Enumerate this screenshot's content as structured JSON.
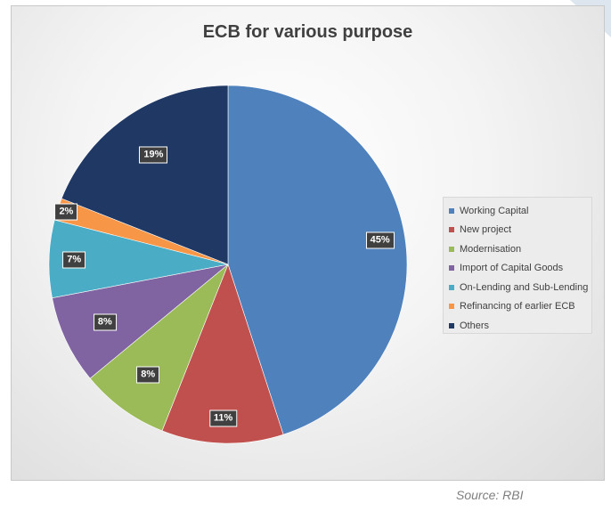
{
  "chart_data": {
    "type": "pie",
    "title": "ECB for various purpose",
    "categories": [
      "Working Capital",
      "New project",
      "Modernisation",
      "Import of Capital Goods",
      "On-Lending and Sub-Lending",
      "Refinancing of earlier ECB",
      "Others"
    ],
    "values": [
      45,
      11,
      8,
      8,
      7,
      2,
      19
    ],
    "labels": [
      "45%",
      "11%",
      "8%",
      "8%",
      "7%",
      "2%",
      "19%"
    ],
    "colors": [
      "#4F81BD",
      "#C0504D",
      "#9BBB59",
      "#8064A2",
      "#4BACC6",
      "#F79646",
      "#1F3864"
    ],
    "legend_position": "right"
  },
  "source_text": "Source: RBI"
}
